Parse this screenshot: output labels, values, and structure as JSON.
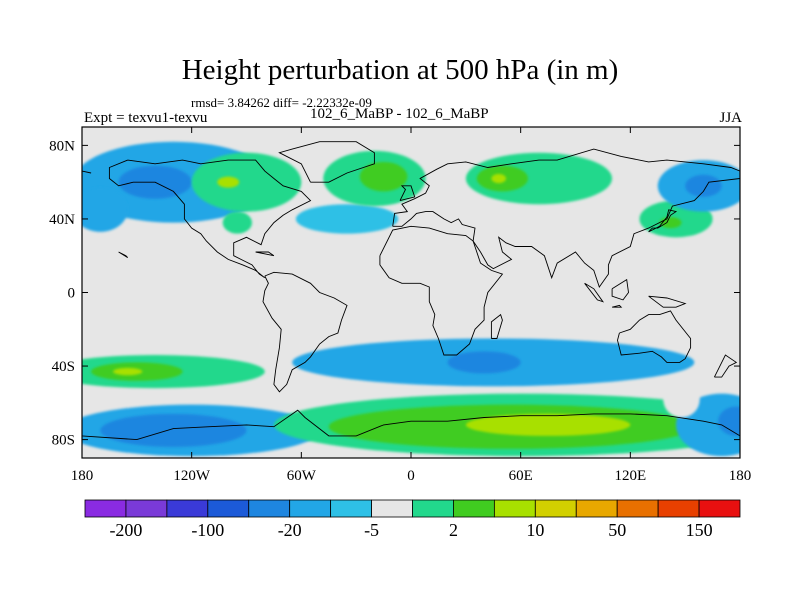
{
  "title": "Height perturbation at 500 hPa (in m)",
  "subtitle": "rmsd= 3.84262 diff= -2.22332e-09",
  "left_label": "Expt = texvu1-texvu",
  "center_label": "102_6_MaBP - 102_6_MaBP",
  "right_label": "JJA",
  "map": {
    "projection": "cylindrical-equidistant",
    "lon_range": [
      -180,
      180
    ],
    "lat_range": [
      -90,
      90
    ],
    "lon_ticks": [
      {
        "value": -180,
        "label": "180"
      },
      {
        "value": -120,
        "label": "120W"
      },
      {
        "value": -60,
        "label": "60W"
      },
      {
        "value": 0,
        "label": "0"
      },
      {
        "value": 60,
        "label": "60E"
      },
      {
        "value": 120,
        "label": "120E"
      },
      {
        "value": 180,
        "label": "180"
      }
    ],
    "lat_ticks": [
      {
        "value": 80,
        "label": "80N"
      },
      {
        "value": 40,
        "label": "40N"
      },
      {
        "value": 0,
        "label": "0"
      },
      {
        "value": -40,
        "label": "40S"
      },
      {
        "value": -80,
        "label": "80S"
      }
    ]
  },
  "colorbar": {
    "colors": [
      "#8a2be2",
      "#7a3ad8",
      "#3a3ad8",
      "#1c5ad8",
      "#1e86e0",
      "#22a6e6",
      "#2ec0e6",
      "#e6e6e6",
      "#22d88c",
      "#40cc20",
      "#a8e000",
      "#d2d000",
      "#e8a800",
      "#e87000",
      "#e84000",
      "#e81010"
    ],
    "labels": [
      {
        "boundary": 1,
        "text": "-200"
      },
      {
        "boundary": 3,
        "text": "-100"
      },
      {
        "boundary": 5,
        "text": "-20"
      },
      {
        "boundary": 7,
        "text": "-5"
      },
      {
        "boundary": 9,
        "text": "2"
      },
      {
        "boundary": 11,
        "text": "10"
      },
      {
        "boundary": 13,
        "text": "50"
      },
      {
        "boundary": 15,
        "text": "150"
      }
    ]
  },
  "fields": [
    {
      "name": "nh-pacific-low",
      "level": "#22a6e6",
      "lon": -130,
      "lat": 60,
      "rlon": 55,
      "rlat": 22
    },
    {
      "name": "nh-pacific-low-core",
      "level": "#1e86e0",
      "lon": -140,
      "lat": 60,
      "rlon": 20,
      "rlat": 9
    },
    {
      "name": "nh-pacific-low-west",
      "level": "#22a6e6",
      "lon": -170,
      "lat": 45,
      "rlon": 15,
      "rlat": 12
    },
    {
      "name": "nh-atlantic-high",
      "level": "#22d88c",
      "lon": -90,
      "lat": 60,
      "rlon": 30,
      "rlat": 16
    },
    {
      "name": "nh-atlantic-high-core",
      "level": "#a8e000",
      "lon": -100,
      "lat": 60,
      "rlon": 6,
      "rlat": 3
    },
    {
      "name": "na-high-small",
      "level": "#22d88c",
      "lon": -95,
      "lat": 38,
      "rlon": 8,
      "rlat": 6
    },
    {
      "name": "atlantic-low",
      "level": "#2ec0e6",
      "lon": -35,
      "lat": 40,
      "rlon": 28,
      "rlat": 8
    },
    {
      "name": "europe-high",
      "level": "#22d88c",
      "lon": -20,
      "lat": 62,
      "rlon": 28,
      "rlat": 15
    },
    {
      "name": "europe-high-core",
      "level": "#40cc20",
      "lon": -15,
      "lat": 63,
      "rlon": 13,
      "rlat": 8
    },
    {
      "name": "asia-high",
      "level": "#22d88c",
      "lon": 70,
      "lat": 62,
      "rlon": 40,
      "rlat": 14
    },
    {
      "name": "asia-high-core",
      "level": "#40cc20",
      "lon": 50,
      "lat": 62,
      "rlon": 14,
      "rlat": 7
    },
    {
      "name": "asia-high-peak",
      "level": "#a8e000",
      "lon": 48,
      "lat": 62,
      "rlon": 4,
      "rlat": 2.5
    },
    {
      "name": "east-asia-high",
      "level": "#22d88c",
      "lon": 145,
      "lat": 40,
      "rlon": 20,
      "rlat": 10
    },
    {
      "name": "east-asia-high-core",
      "level": "#40cc20",
      "lon": 142,
      "lat": 38,
      "rlon": 6,
      "rlat": 3
    },
    {
      "name": "np-low-east",
      "level": "#22a6e6",
      "lon": 160,
      "lat": 58,
      "rlon": 25,
      "rlat": 14
    },
    {
      "name": "np-low-east-core",
      "level": "#1e86e0",
      "lon": 160,
      "lat": 58,
      "rlon": 10,
      "rlat": 6
    },
    {
      "name": "sh-west-low",
      "level": "#22a6e6",
      "lon": -120,
      "lat": -75,
      "rlon": 70,
      "rlat": 14
    },
    {
      "name": "sh-west-low-core",
      "level": "#1e86e0",
      "lon": -130,
      "lat": -75,
      "rlon": 40,
      "rlat": 9
    },
    {
      "name": "sh-west-high",
      "level": "#22d88c",
      "lon": -140,
      "lat": -43,
      "rlon": 60,
      "rlat": 9
    },
    {
      "name": "sh-west-high-core",
      "level": "#40cc20",
      "lon": -150,
      "lat": -43,
      "rlon": 25,
      "rlat": 5
    },
    {
      "name": "sh-west-high-peak",
      "level": "#a8e000",
      "lon": -155,
      "lat": -43,
      "rlon": 8,
      "rlat": 2
    },
    {
      "name": "sh-mid-low",
      "level": "#22a6e6",
      "lon": 45,
      "lat": -38,
      "rlon": 110,
      "rlat": 13
    },
    {
      "name": "sh-mid-low-core",
      "level": "#1e86e0",
      "lon": 40,
      "lat": -38,
      "rlon": 20,
      "rlat": 6
    },
    {
      "name": "sh-mid-high",
      "level": "#22d88c",
      "lon": 60,
      "lat": -72,
      "rlon": 135,
      "rlat": 17
    },
    {
      "name": "sh-mid-high-core",
      "level": "#40cc20",
      "lon": 55,
      "lat": -73,
      "rlon": 100,
      "rlat": 12
    },
    {
      "name": "sh-mid-high-peak",
      "level": "#a8e000",
      "lon": 75,
      "lat": -72,
      "rlon": 45,
      "rlat": 6
    },
    {
      "name": "sh-east-low",
      "level": "#22a6e6",
      "lon": 170,
      "lat": -72,
      "rlon": 25,
      "rlat": 17
    },
    {
      "name": "sh-east-low-core",
      "level": "#1e86e0",
      "lon": 178,
      "lat": -70,
      "rlon": 10,
      "rlat": 8
    },
    {
      "name": "sh-east-low-inset",
      "level": "#e6e6e6",
      "lon": 148,
      "lat": -58,
      "rlon": 10,
      "rlat": 10
    }
  ],
  "coastlines": [
    [
      [
        -155,
        72
      ],
      [
        -140,
        70
      ],
      [
        -125,
        72
      ],
      [
        -115,
        70
      ],
      [
        -100,
        72
      ],
      [
        -85,
        72
      ],
      [
        -80,
        66
      ],
      [
        -75,
        62
      ],
      [
        -70,
        58
      ],
      [
        -60,
        55
      ],
      [
        -55,
        50
      ],
      [
        -65,
        45
      ],
      [
        -70,
        42
      ],
      [
        -75,
        38
      ],
      [
        -80,
        32
      ],
      [
        -82,
        26
      ],
      [
        -90,
        30
      ],
      [
        -97,
        27
      ],
      [
        -97,
        20
      ],
      [
        -93,
        18
      ],
      [
        -87,
        15
      ],
      [
        -83,
        10
      ],
      [
        -80,
        8
      ],
      [
        -85,
        12
      ],
      [
        -92,
        15
      ],
      [
        -100,
        18
      ],
      [
        -106,
        22
      ],
      [
        -112,
        28
      ],
      [
        -115,
        32
      ],
      [
        -120,
        35
      ],
      [
        -124,
        40
      ],
      [
        -124,
        48
      ],
      [
        -130,
        55
      ],
      [
        -140,
        60
      ],
      [
        -152,
        60
      ],
      [
        -160,
        58
      ],
      [
        -165,
        62
      ],
      [
        -165,
        68
      ],
      [
        -155,
        72
      ]
    ],
    [
      [
        -80,
        9
      ],
      [
        -75,
        11
      ],
      [
        -65,
        10
      ],
      [
        -55,
        5
      ],
      [
        -50,
        0
      ],
      [
        -42,
        -3
      ],
      [
        -35,
        -7
      ],
      [
        -38,
        -15
      ],
      [
        -40,
        -22
      ],
      [
        -45,
        -24
      ],
      [
        -50,
        -28
      ],
      [
        -55,
        -35
      ],
      [
        -58,
        -38
      ],
      [
        -65,
        -42
      ],
      [
        -68,
        -50
      ],
      [
        -72,
        -54
      ],
      [
        -75,
        -50
      ],
      [
        -74,
        -42
      ],
      [
        -72,
        -30
      ],
      [
        -71,
        -20
      ],
      [
        -76,
        -14
      ],
      [
        -81,
        -5
      ],
      [
        -80,
        1
      ],
      [
        -78,
        5
      ],
      [
        -80,
        9
      ]
    ],
    [
      [
        -17,
        20
      ],
      [
        -17,
        15
      ],
      [
        -12,
        8
      ],
      [
        -5,
        5
      ],
      [
        5,
        5
      ],
      [
        10,
        3
      ],
      [
        10,
        -5
      ],
      [
        13,
        -12
      ],
      [
        12,
        -18
      ],
      [
        15,
        -25
      ],
      [
        18,
        -34
      ],
      [
        25,
        -34
      ],
      [
        32,
        -28
      ],
      [
        35,
        -20
      ],
      [
        40,
        -15
      ],
      [
        40,
        -8
      ],
      [
        42,
        0
      ],
      [
        50,
        10
      ],
      [
        44,
        12
      ],
      [
        38,
        16
      ],
      [
        34,
        28
      ],
      [
        30,
        31
      ],
      [
        20,
        32
      ],
      [
        10,
        35
      ],
      [
        0,
        36
      ],
      [
        -10,
        34
      ],
      [
        -17,
        20
      ]
    ],
    [
      [
        -10,
        36
      ],
      [
        -9,
        43
      ],
      [
        -2,
        44
      ],
      [
        -5,
        48
      ],
      [
        2,
        51
      ],
      [
        8,
        54
      ],
      [
        10,
        58
      ],
      [
        5,
        62
      ],
      [
        14,
        67
      ],
      [
        20,
        70
      ],
      [
        30,
        71
      ],
      [
        42,
        68
      ],
      [
        55,
        70
      ],
      [
        70,
        72
      ],
      [
        80,
        72
      ],
      [
        100,
        78
      ],
      [
        115,
        74
      ],
      [
        130,
        71
      ],
      [
        140,
        72
      ],
      [
        160,
        70
      ],
      [
        175,
        68
      ],
      [
        180,
        66
      ]
    ],
    [
      [
        -180,
        66
      ],
      [
        -175,
        65
      ]
    ],
    [
      [
        180,
        62
      ],
      [
        163,
        60
      ],
      [
        160,
        55
      ],
      [
        155,
        50
      ],
      [
        143,
        47
      ],
      [
        140,
        40
      ],
      [
        130,
        35
      ],
      [
        122,
        32
      ],
      [
        120,
        25
      ],
      [
        110,
        20
      ],
      [
        108,
        15
      ],
      [
        108,
        10
      ],
      [
        103,
        3
      ],
      [
        100,
        12
      ],
      [
        95,
        16
      ],
      [
        90,
        22
      ],
      [
        80,
        16
      ],
      [
        77,
        8
      ],
      [
        73,
        20
      ],
      [
        66,
        25
      ],
      [
        57,
        25
      ],
      [
        52,
        27
      ],
      [
        48,
        30
      ],
      [
        50,
        22
      ],
      [
        55,
        18
      ],
      [
        45,
        13
      ],
      [
        42,
        15
      ],
      [
        38,
        22
      ],
      [
        34,
        28
      ],
      [
        35,
        35
      ],
      [
        28,
        37
      ],
      [
        26,
        40
      ],
      [
        22,
        38
      ],
      [
        18,
        40
      ],
      [
        12,
        44
      ],
      [
        8,
        44
      ],
      [
        3,
        43
      ],
      [
        0,
        40
      ],
      [
        -5,
        36
      ],
      [
        -10,
        36
      ]
    ],
    [
      [
        114,
        -22
      ],
      [
        113,
        -26
      ],
      [
        115,
        -34
      ],
      [
        125,
        -33
      ],
      [
        132,
        -32
      ],
      [
        137,
        -35
      ],
      [
        140,
        -38
      ],
      [
        147,
        -38
      ],
      [
        150,
        -36
      ],
      [
        153,
        -30
      ],
      [
        153,
        -25
      ],
      [
        145,
        -15
      ],
      [
        142,
        -10
      ],
      [
        136,
        -12
      ],
      [
        130,
        -12
      ],
      [
        125,
        -15
      ],
      [
        120,
        -20
      ],
      [
        114,
        -22
      ]
    ],
    [
      [
        44,
        -25
      ],
      [
        47,
        -25
      ],
      [
        50,
        -15
      ],
      [
        49,
        -12
      ],
      [
        44,
        -16
      ],
      [
        44,
        -25
      ]
    ],
    [
      [
        166,
        -46
      ],
      [
        170,
        -46
      ],
      [
        174,
        -40
      ],
      [
        178,
        -38
      ],
      [
        172,
        -34
      ],
      [
        168,
        -42
      ],
      [
        166,
        -46
      ]
    ],
    [
      [
        -180,
        -78
      ],
      [
        -150,
        -80
      ],
      [
        -130,
        -74
      ],
      [
        -110,
        -73
      ],
      [
        -90,
        -72
      ],
      [
        -75,
        -73
      ],
      [
        -62,
        -64
      ],
      [
        -58,
        -68
      ],
      [
        -45,
        -78
      ],
      [
        -30,
        -78
      ],
      [
        -15,
        -72
      ],
      [
        0,
        -70
      ],
      [
        20,
        -70
      ],
      [
        40,
        -68
      ],
      [
        60,
        -67
      ],
      [
        80,
        -67
      ],
      [
        100,
        -66
      ],
      [
        120,
        -66
      ],
      [
        140,
        -67
      ],
      [
        160,
        -70
      ],
      [
        170,
        -72
      ],
      [
        180,
        -78
      ]
    ],
    [
      [
        -55,
        60
      ],
      [
        -45,
        60
      ],
      [
        -35,
        65
      ],
      [
        -20,
        70
      ],
      [
        -20,
        76
      ],
      [
        -30,
        82
      ],
      [
        -50,
        82
      ],
      [
        -65,
        78
      ],
      [
        -72,
        76
      ],
      [
        -60,
        70
      ],
      [
        -55,
        60
      ]
    ],
    [
      [
        -6,
        50
      ],
      [
        -3,
        56
      ],
      [
        -5,
        58
      ],
      [
        0,
        58
      ],
      [
        2,
        52
      ],
      [
        -6,
        50
      ]
    ],
    [
      [
        130,
        33
      ],
      [
        132,
        35
      ],
      [
        135,
        35
      ],
      [
        140,
        38
      ],
      [
        142,
        42
      ],
      [
        145,
        44
      ],
      [
        141,
        45
      ],
      [
        140,
        41
      ],
      [
        136,
        36
      ],
      [
        132,
        34
      ],
      [
        130,
        33
      ]
    ],
    [
      [
        95,
        5
      ],
      [
        100,
        2
      ],
      [
        105,
        -5
      ],
      [
        102,
        -4
      ],
      [
        95,
        5
      ]
    ],
    [
      [
        110,
        -8
      ],
      [
        115,
        -8
      ],
      [
        114,
        -7
      ],
      [
        110,
        -8
      ]
    ],
    [
      [
        130,
        -2
      ],
      [
        140,
        -3
      ],
      [
        150,
        -6
      ],
      [
        145,
        -8
      ],
      [
        138,
        -8
      ],
      [
        130,
        -2
      ]
    ],
    [
      [
        110,
        2
      ],
      [
        118,
        7
      ],
      [
        119,
        0
      ],
      [
        116,
        -4
      ],
      [
        110,
        -2
      ],
      [
        110,
        2
      ]
    ],
    [
      [
        -85,
        22
      ],
      [
        -75,
        20
      ],
      [
        -78,
        22
      ],
      [
        -85,
        22
      ]
    ],
    [
      [
        -160,
        22
      ],
      [
        -155,
        19
      ],
      [
        -156,
        20
      ],
      [
        -160,
        22
      ]
    ]
  ]
}
